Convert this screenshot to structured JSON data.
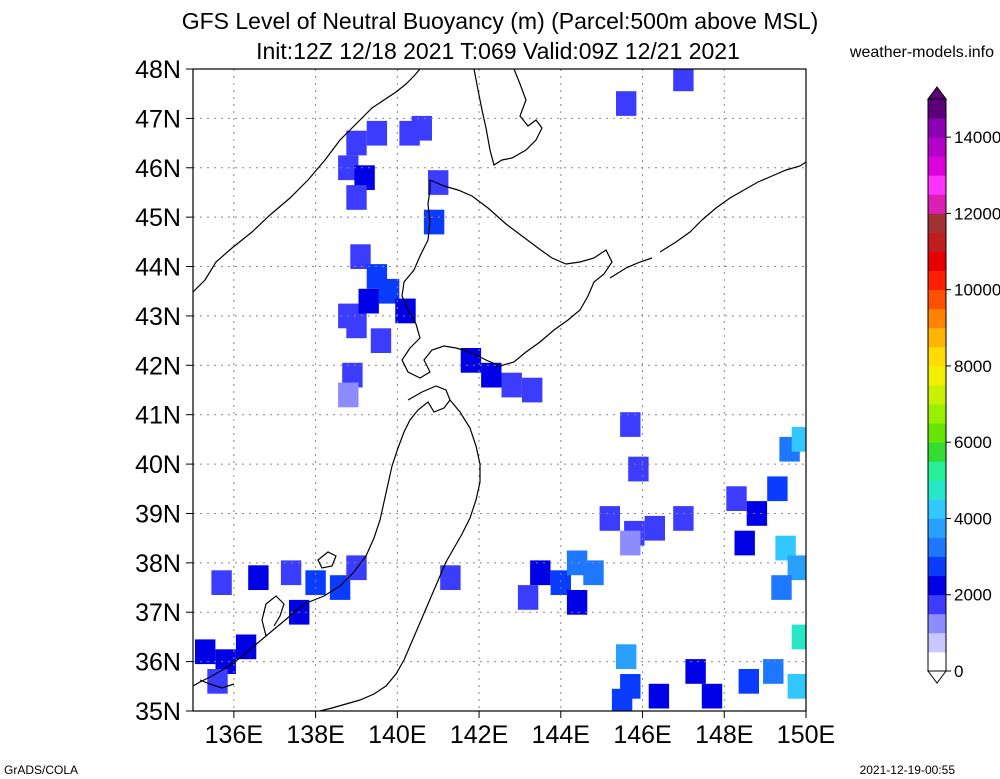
{
  "title": {
    "line1": "GFS Level of Neutral Buoyancy (m) (Parcel:500m above MSL)",
    "line2": "Init:12Z 12/18 2021 T:069 Valid:09Z 12/21 2021"
  },
  "brand": "weather-models.info",
  "footer": {
    "left": "GrADS/COLA",
    "right": "2021-12-19-00:55"
  },
  "axes": {
    "lat_labels": [
      "35N",
      "36N",
      "37N",
      "38N",
      "39N",
      "40N",
      "41N",
      "42N",
      "43N",
      "44N",
      "45N",
      "46N",
      "47N",
      "48N"
    ],
    "lat_values": [
      35,
      36,
      37,
      38,
      39,
      40,
      41,
      42,
      43,
      44,
      45,
      46,
      47,
      48
    ],
    "lon_labels": [
      "136E",
      "138E",
      "140E",
      "142E",
      "144E",
      "146E",
      "148E",
      "150E"
    ],
    "lon_values": [
      136,
      138,
      140,
      142,
      144,
      146,
      148,
      150
    ],
    "lon_range": [
      135,
      150
    ],
    "lat_range": [
      35,
      48
    ]
  },
  "colorbar": {
    "labels": [
      "0",
      "2000",
      "4000",
      "6000",
      "8000",
      "10000",
      "12000",
      "14000"
    ],
    "label_values": [
      0,
      2000,
      4000,
      6000,
      8000,
      10000,
      12000,
      14000
    ],
    "range": [
      0,
      15000
    ],
    "stops": [
      "#ffffff",
      "#c8c8ff",
      "#8c8cff",
      "#3c3cff",
      "#0000e6",
      "#0a3cff",
      "#1e78ff",
      "#28a0ff",
      "#32c8ff",
      "#28e6c8",
      "#28f096",
      "#32dc32",
      "#64e600",
      "#96f000",
      "#c8f000",
      "#f0f000",
      "#ffdc00",
      "#ffb400",
      "#ff8200",
      "#ff5000",
      "#ff1e00",
      "#e60000",
      "#be1e1e",
      "#a03232",
      "#dc1eb4",
      "#ff32ff",
      "#dc00dc",
      "#b400c8",
      "#8c00b4",
      "#5a0078"
    ]
  },
  "chart_data": {
    "type": "heatmap",
    "variable": "Level of Neutral Buoyancy (m)",
    "unit": "m",
    "cells": [
      [
        139.0,
        46.5,
        1500
      ],
      [
        139.5,
        46.7,
        1600
      ],
      [
        140.3,
        46.7,
        1700
      ],
      [
        140.6,
        46.8,
        1800
      ],
      [
        138.8,
        46.0,
        1800
      ],
      [
        139.2,
        45.8,
        2200
      ],
      [
        139.0,
        45.4,
        1600
      ],
      [
        141.0,
        45.7,
        1700
      ],
      [
        140.9,
        44.9,
        2600
      ],
      [
        139.1,
        44.2,
        1900
      ],
      [
        139.5,
        43.8,
        2800
      ],
      [
        139.8,
        43.5,
        2700
      ],
      [
        140.2,
        43.1,
        2400
      ],
      [
        139.3,
        43.3,
        2200
      ],
      [
        139.0,
        42.8,
        1700
      ],
      [
        139.6,
        42.5,
        1600
      ],
      [
        138.8,
        43.0,
        1500
      ],
      [
        138.9,
        41.8,
        1500
      ],
      [
        138.8,
        41.4,
        1400
      ],
      [
        141.8,
        42.1,
        2400
      ],
      [
        142.3,
        41.8,
        2300
      ],
      [
        142.8,
        41.6,
        1800
      ],
      [
        143.3,
        41.5,
        1700
      ],
      [
        145.6,
        47.3,
        1500
      ],
      [
        147.0,
        47.8,
        1500
      ],
      [
        145.7,
        40.8,
        1600
      ],
      [
        145.9,
        39.9,
        1500
      ],
      [
        145.2,
        38.9,
        1500
      ],
      [
        145.8,
        38.6,
        1600
      ],
      [
        146.3,
        38.7,
        1700
      ],
      [
        147.0,
        38.9,
        1500
      ],
      [
        145.7,
        38.4,
        1400
      ],
      [
        148.3,
        39.3,
        1800
      ],
      [
        148.8,
        39.0,
        2400
      ],
      [
        149.3,
        39.5,
        2800
      ],
      [
        149.6,
        40.3,
        3200
      ],
      [
        149.9,
        40.5,
        4200
      ],
      [
        148.5,
        38.4,
        2100
      ],
      [
        149.5,
        38.3,
        4200
      ],
      [
        149.8,
        37.9,
        3600
      ],
      [
        149.4,
        37.5,
        3000
      ],
      [
        149.9,
        36.5,
        4600
      ],
      [
        149.8,
        35.5,
        4400
      ],
      [
        149.2,
        35.8,
        3400
      ],
      [
        148.6,
        35.6,
        2700
      ],
      [
        147.7,
        35.3,
        2300
      ],
      [
        147.3,
        35.8,
        2200
      ],
      [
        143.5,
        37.8,
        2400
      ],
      [
        144.0,
        37.6,
        2900
      ],
      [
        144.4,
        38.0,
        3400
      ],
      [
        144.8,
        37.8,
        3100
      ],
      [
        143.2,
        37.3,
        1800
      ],
      [
        144.4,
        37.2,
        2200
      ],
      [
        145.6,
        36.1,
        3600
      ],
      [
        145.7,
        35.5,
        2700
      ],
      [
        146.4,
        35.3,
        2300
      ],
      [
        145.5,
        35.2,
        2600
      ],
      [
        141.3,
        37.7,
        1800
      ],
      [
        135.7,
        37.6,
        1900
      ],
      [
        136.6,
        37.7,
        2000
      ],
      [
        137.4,
        37.8,
        1700
      ],
      [
        138.0,
        37.6,
        2600
      ],
      [
        138.6,
        37.5,
        2800
      ],
      [
        139.0,
        37.9,
        1700
      ],
      [
        137.6,
        37.0,
        2300
      ],
      [
        135.3,
        36.2,
        2000
      ],
      [
        135.8,
        36.0,
        2200
      ],
      [
        136.3,
        36.3,
        2300
      ],
      [
        135.6,
        35.6,
        1800
      ]
    ]
  }
}
